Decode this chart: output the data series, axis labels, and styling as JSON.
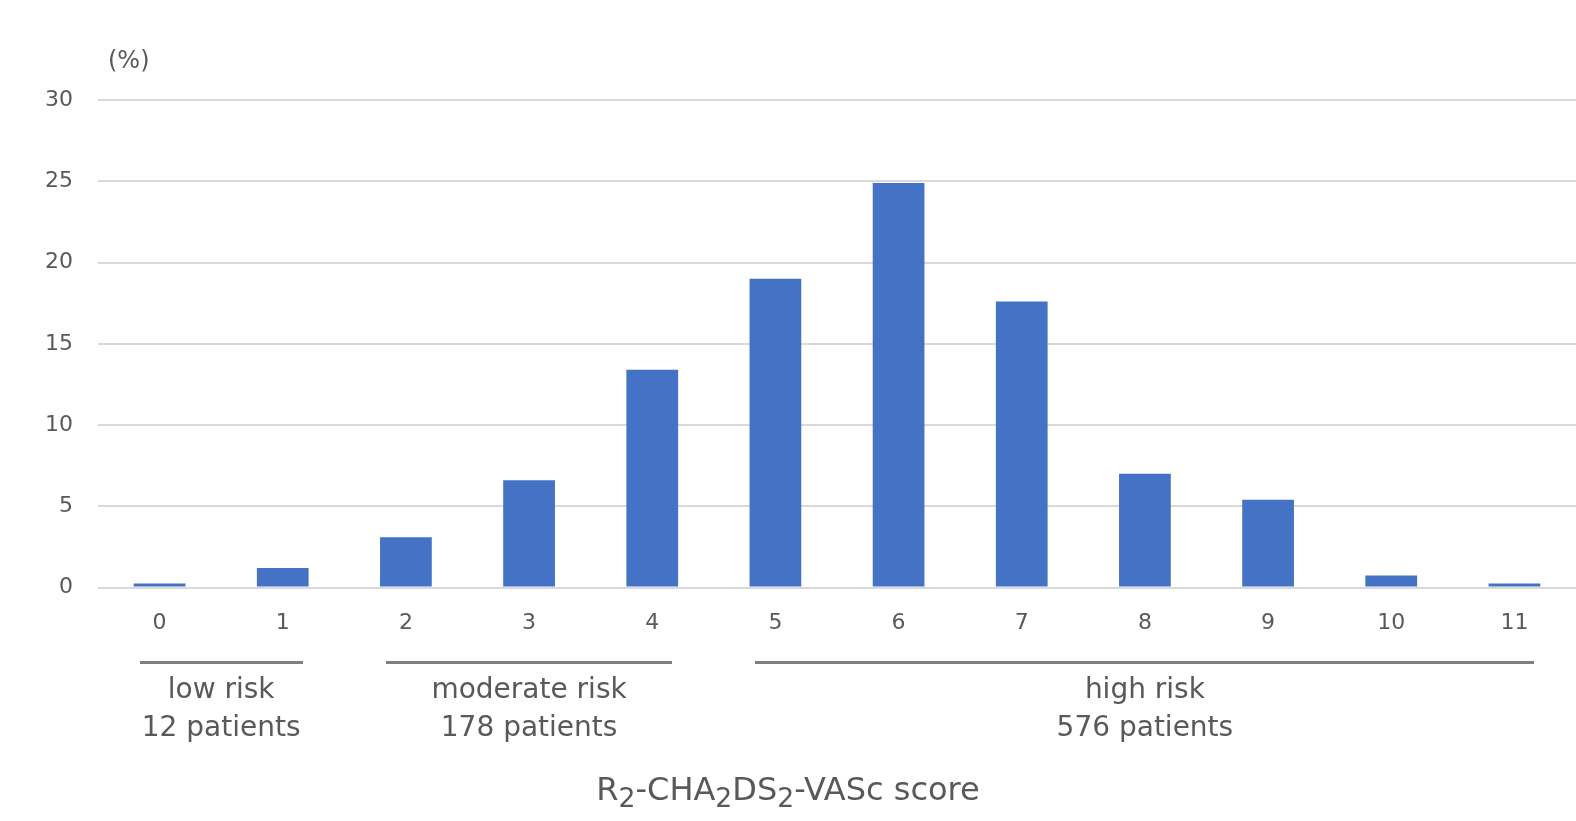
{
  "chart_data": {
    "type": "bar",
    "xlabel": "R$_{2}$-CHA$_{2}$DS$_{2}$-VASc score",
    "ylabel": "(%)",
    "categories": [
      "0",
      "1",
      "2",
      "3",
      "4",
      "5",
      "6",
      "7",
      "8",
      "9",
      "10",
      "11"
    ],
    "values": [
      0.25,
      1.2,
      3.1,
      6.6,
      13.4,
      19.0,
      24.9,
      17.6,
      7.0,
      5.4,
      0.75,
      0.25
    ],
    "color": "#4472c4",
    "ylim": [
      0,
      30
    ],
    "yticks": [
      0,
      5,
      10,
      15,
      20,
      25,
      30
    ],
    "grid": "y",
    "annotations": [
      "low risk\n12 patients",
      "moderate risk\n178 patients",
      "high risk\n576 patients"
    ]
  }
}
